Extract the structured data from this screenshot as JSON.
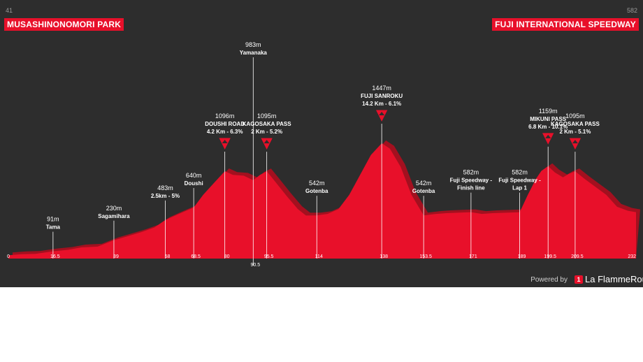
{
  "start": {
    "elevation": "41",
    "name": "MUSASHINONOMORI PARK"
  },
  "finish": {
    "elevation": "582",
    "name": "FUJI INTERNATIONAL SPEEDWAY"
  },
  "colors": {
    "background": "#2d2d2d",
    "profile_front": "#e8102a",
    "profile_back": "#a3101f",
    "marker": "#e8102a"
  },
  "chart_data": {
    "type": "area",
    "xlim": [
      0,
      232
    ],
    "profile_x": [
      0,
      5,
      10,
      16.5,
      22,
      27,
      33,
      39,
      44,
      49,
      54,
      58,
      63,
      68.5,
      72,
      76,
      80,
      83,
      87,
      90.5,
      93,
      95.5,
      99,
      103,
      107,
      110,
      114,
      118,
      122,
      126,
      130,
      134,
      138,
      141,
      145,
      149,
      153.5,
      158,
      162,
      166,
      171,
      175,
      179,
      184,
      189,
      192,
      195,
      197,
      199.5,
      202,
      205,
      207,
      209.5,
      213,
      217,
      221,
      225,
      229,
      232
    ],
    "profile_y": [
      41,
      55,
      60,
      91,
      110,
      140,
      150,
      230,
      280,
      330,
      390,
      483,
      560,
      640,
      800,
      950,
      1096,
      1050,
      1040,
      983,
      1050,
      1095,
      950,
      780,
      620,
      540,
      542,
      560,
      620,
      800,
      1050,
      1300,
      1447,
      1380,
      1150,
      800,
      542,
      560,
      570,
      575,
      582,
      560,
      570,
      575,
      582,
      800,
      1000,
      1100,
      1159,
      1080,
      1020,
      1060,
      1095,
      1000,
      900,
      800,
      650,
      600,
      582
    ],
    "ticks": [
      "0",
      "16.5",
      "39",
      "58",
      "68.5",
      "80",
      "90.5",
      "95.5",
      "114",
      "138",
      "153.5",
      "171",
      "189",
      "199.5",
      "209.5",
      "232"
    ],
    "waypoints": [
      {
        "km": 16.5,
        "elevation": "91m",
        "name": "Tama",
        "detail": "",
        "climb": false
      },
      {
        "km": 39,
        "elevation": "230m",
        "name": "Sagamihara",
        "detail": "",
        "climb": false
      },
      {
        "km": 58,
        "elevation": "483m",
        "name": "",
        "detail": "2.5km - 5%",
        "climb": false
      },
      {
        "km": 68.5,
        "elevation": "640m",
        "name": "Doushi",
        "detail": "",
        "climb": false
      },
      {
        "km": 80,
        "elevation": "1096m",
        "name": "DOUSHI ROAD",
        "detail": "4.2 Km - 6.3%",
        "climb": true
      },
      {
        "km": 90.5,
        "elevation": "983m",
        "name": "Yamanaka",
        "detail": "",
        "climb": false
      },
      {
        "km": 95.5,
        "elevation": "1095m",
        "name": "KAGOSAKA PASS",
        "detail": "2 Km - 5.2%",
        "climb": true
      },
      {
        "km": 114,
        "elevation": "542m",
        "name": "Gotenba",
        "detail": "",
        "climb": false
      },
      {
        "km": 138,
        "elevation": "1447m",
        "name": "FUJI SANROKU",
        "detail": "14.2 Km - 6.1%",
        "climb": true
      },
      {
        "km": 153.5,
        "elevation": "542m",
        "name": "Gotenba",
        "detail": "",
        "climb": false
      },
      {
        "km": 171,
        "elevation": "582m",
        "name": "Fuji Speedway - Finish line",
        "detail": "",
        "climb": false
      },
      {
        "km": 189,
        "elevation": "582m",
        "name": "Fuji Speedway - Lap 1",
        "detail": "",
        "climb": false
      },
      {
        "km": 199.5,
        "elevation": "1159m",
        "name": "MIKUNI PASS",
        "detail": "6.8 Km - 10.1%",
        "climb": true
      },
      {
        "km": 209.5,
        "elevation": "1095m",
        "name": "KAGOSAKA PASS",
        "detail": "2 Km - 5.1%",
        "climb": true
      }
    ]
  },
  "footer": {
    "powered_by": "Powered by",
    "brand": "La FlammeRouge",
    "brand_mark": "1"
  }
}
